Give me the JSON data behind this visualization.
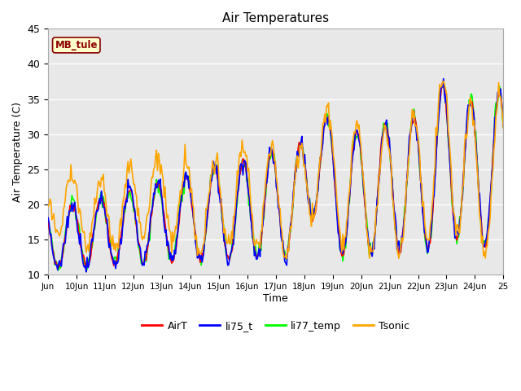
{
  "title": "Air Temperatures",
  "xlabel": "Time",
  "ylabel": "Air Temperature (C)",
  "ylim": [
    10,
    45
  ],
  "xlim": [
    0,
    16
  ],
  "station_label": "MB_tule",
  "legend_entries": [
    "AirT",
    "li75_t",
    "li77_temp",
    "Tsonic"
  ],
  "line_colors": [
    "red",
    "blue",
    "lime",
    "orange"
  ],
  "background_color": "#e8e8e8",
  "grid_color": "white",
  "tick_labels": [
    "Jun",
    "10Jun",
    "11Jun",
    "12Jun",
    "13Jun",
    "14Jun",
    "15Jun",
    "16Jun",
    "17Jun",
    "18Jun",
    "19Jun",
    "20Jun",
    "21Jun",
    "22Jun",
    "23Jun",
    "24Jun",
    "25"
  ],
  "yticks": [
    10,
    15,
    20,
    25,
    30,
    35,
    40,
    45
  ],
  "n_points": 480,
  "days": 16
}
